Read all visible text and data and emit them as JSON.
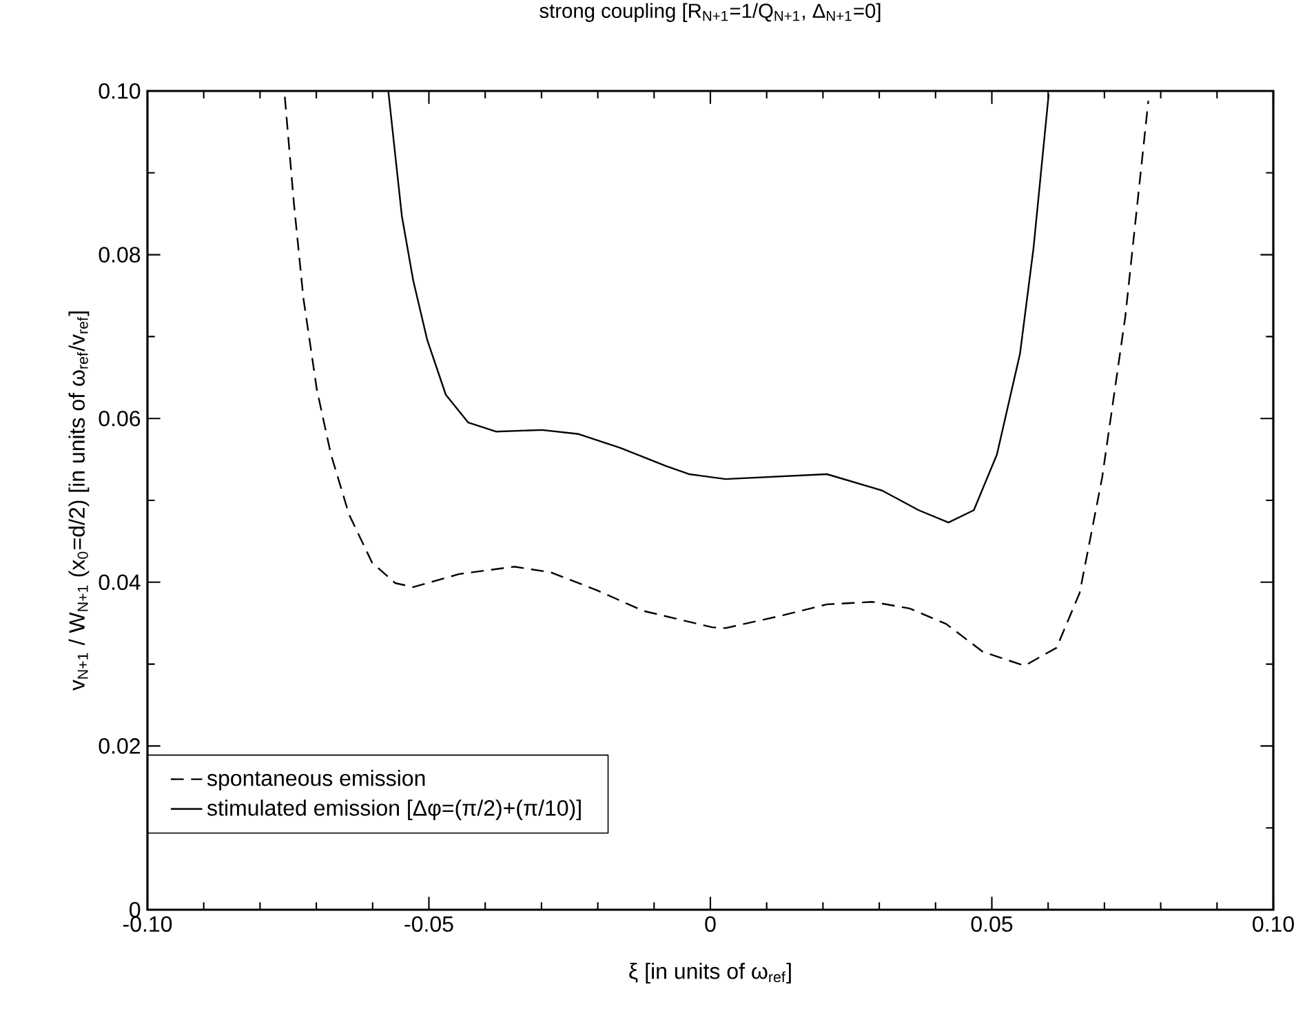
{
  "chart_data": {
    "type": "line",
    "title": "strong coupling [R$_{N+1}$=1/Q$_{N+1}$, Δ$_{N+1}$=0]",
    "xlabel": "ξ [in units of ω$_{ref}$]",
    "ylabel": "v$_{N+1}$ / W$_{N+1}$ (x$_{0}$=d/2) [in units of ω$_{ref}$/v$_{ref}$]",
    "xlim": [
      -0.1,
      0.1
    ],
    "ylim": [
      0,
      0.1
    ],
    "xticks": [
      {
        "value": -0.1,
        "label": "-0.10"
      },
      {
        "value": -0.09,
        "label": null
      },
      {
        "value": -0.08,
        "label": null
      },
      {
        "value": -0.07,
        "label": null
      },
      {
        "value": -0.06,
        "label": null
      },
      {
        "value": -0.05,
        "label": "-0.05"
      },
      {
        "value": -0.04,
        "label": null
      },
      {
        "value": -0.03,
        "label": null
      },
      {
        "value": -0.02,
        "label": null
      },
      {
        "value": -0.01,
        "label": null
      },
      0,
      {
        "value": 0.01,
        "label": null
      },
      {
        "value": 0.02,
        "label": null
      },
      {
        "value": 0.03,
        "label": null
      },
      {
        "value": 0.04,
        "label": null
      },
      0.05,
      {
        "value": 0.06,
        "label": null
      },
      {
        "value": 0.07,
        "label": null
      },
      {
        "value": 0.08,
        "label": null
      },
      {
        "value": 0.09,
        "label": null
      },
      {
        "value": 0.1,
        "label": "0.10"
      }
    ],
    "yticks": [
      0,
      {
        "value": 0.01,
        "label": null
      },
      0.02,
      {
        "value": 0.03,
        "label": null
      },
      0.04,
      {
        "value": 0.05,
        "label": null
      },
      0.06,
      {
        "value": 0.07,
        "label": null
      },
      0.08,
      {
        "value": 0.09,
        "label": null
      },
      {
        "value": 0.1,
        "label": "0.10"
      }
    ],
    "legend": "bottom left",
    "series": [
      {
        "name": "spontaneous emission",
        "color": "#000000",
        "line_style": "dashed",
        "x": [
          -0.0756,
          -0.074,
          -0.0723,
          -0.0699,
          -0.0674,
          -0.0642,
          -0.0601,
          -0.056,
          -0.0528,
          -0.0446,
          -0.0348,
          -0.0283,
          -0.0201,
          -0.0119,
          0.0003,
          0.0027,
          0.0125,
          0.0207,
          0.0288,
          0.0354,
          0.0419,
          0.0484,
          0.0558,
          0.0615,
          0.0656,
          0.0696,
          0.0737,
          0.0778
        ],
        "values": [
          0.0993,
          0.0864,
          0.0747,
          0.0635,
          0.0556,
          0.0483,
          0.0424,
          0.0399,
          0.0394,
          0.041,
          0.0419,
          0.0412,
          0.039,
          0.0365,
          0.0345,
          0.0344,
          0.0359,
          0.0373,
          0.0376,
          0.0368,
          0.0349,
          0.0315,
          0.0298,
          0.032,
          0.0387,
          0.0528,
          0.0724,
          0.0988
        ]
      },
      {
        "name": "stimulated emission [Δφ=(π/2)+(π/10)]",
        "color": "#000000",
        "line_style": "solid",
        "x": [
          -0.0572,
          -0.0548,
          -0.0528,
          -0.0503,
          -0.047,
          -0.043,
          -0.0381,
          -0.0299,
          -0.0234,
          -0.016,
          -0.0079,
          -0.0038,
          0.0027,
          0.0207,
          0.0305,
          0.037,
          0.0423,
          0.0468,
          0.0509,
          0.055,
          0.0574,
          0.0601
        ],
        "values": [
          0.0999,
          0.0847,
          0.0769,
          0.0696,
          0.0629,
          0.0595,
          0.0584,
          0.0586,
          0.0581,
          0.0564,
          0.0542,
          0.0532,
          0.0526,
          0.0532,
          0.0512,
          0.0488,
          0.0473,
          0.0488,
          0.0556,
          0.0679,
          0.0808,
          0.0996
        ]
      }
    ]
  }
}
